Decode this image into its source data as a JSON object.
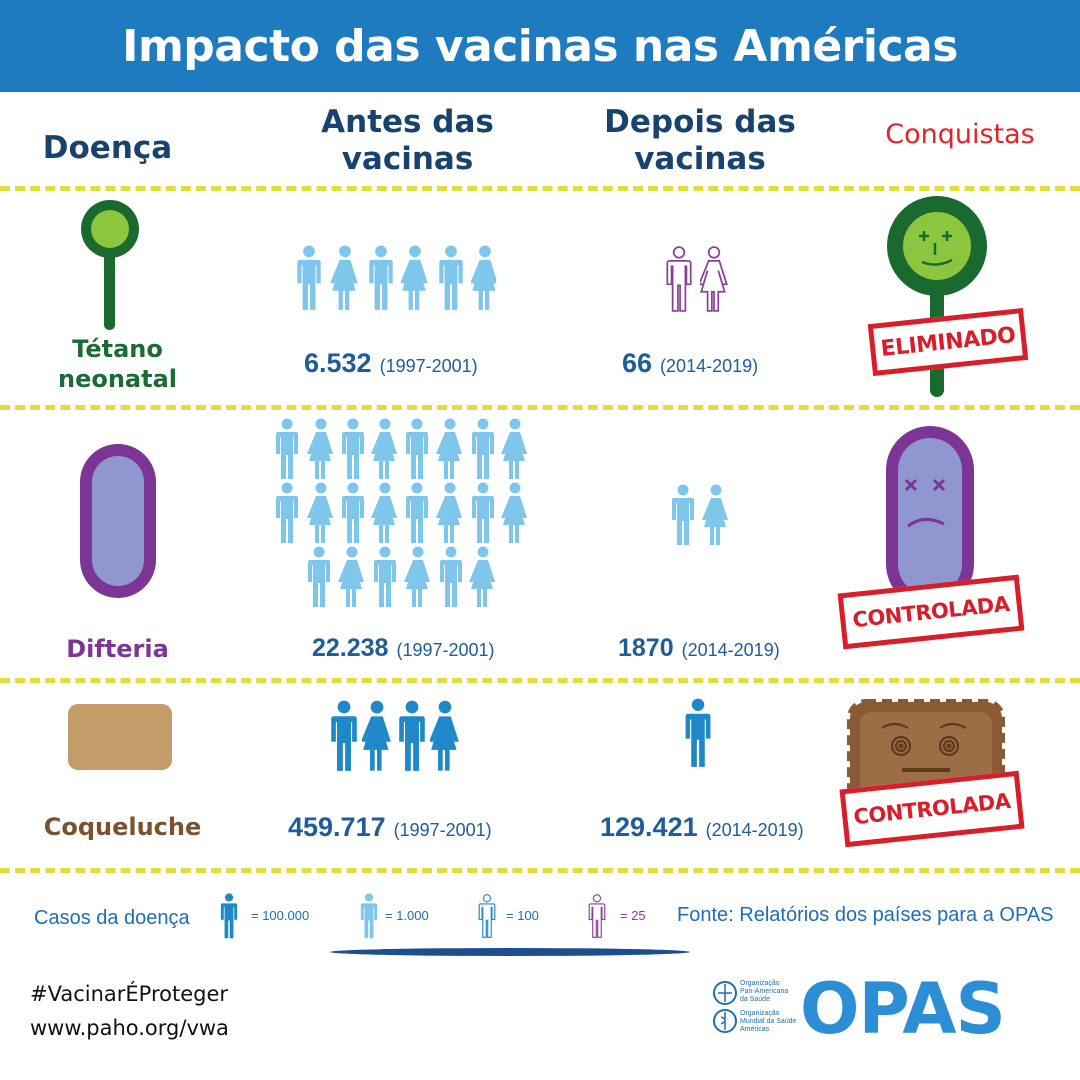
{
  "header": {
    "title": "Impacto das vacinas nas Américas"
  },
  "columns": {
    "disease": "Doença",
    "before": [
      "Antes das",
      "vacinas"
    ],
    "after": [
      "Depois das",
      "vacinas"
    ],
    "achievements": "Conquistas"
  },
  "rows": [
    {
      "name": [
        "Tétano",
        "neonatal"
      ],
      "name_color": "#1c6b36",
      "before_count": "6.532",
      "before_years": "(1997-2001)",
      "after_count": "66",
      "after_years": "(2014-2019)",
      "stamp": "ELIMINADO"
    },
    {
      "name": [
        "Difteria"
      ],
      "name_color": "#7b3595",
      "before_count": "22.238",
      "before_years": "(1997-2001)",
      "after_count": "1870",
      "after_years": "(2014-2019)",
      "stamp": "CONTROLADA"
    },
    {
      "name": [
        "Coqueluche"
      ],
      "name_color": "#7a5230",
      "before_count": "459.717",
      "before_years": "(1997-2001)",
      "after_count": "129.421",
      "after_years": "(2014-2019)",
      "stamp": "CONTROLADA"
    }
  ],
  "legend": {
    "label": "Casos da doença",
    "items": [
      {
        "icon": "person-dark-blue-icon",
        "value": "= 100.000"
      },
      {
        "icon": "person-light-blue-icon",
        "value": "= 1.000"
      },
      {
        "icon": "person-outline-blue-icon",
        "value": "= 100"
      },
      {
        "icon": "person-outline-purple-icon",
        "value": "= 25"
      }
    ],
    "source": "Fonte: Relatórios dos países para a OPAS"
  },
  "footer": {
    "hashtag": "#VacinarÉProteger",
    "url": "www.paho.org/vwa",
    "org_lines_1": [
      "Organização",
      "Pan-Americana",
      "da Saúde"
    ],
    "org_lines_2": [
      "Organização",
      "Mundial da Saúde",
      "Américas"
    ],
    "logo": "OPAS"
  },
  "colors": {
    "header_blue": "#1f7bbf",
    "dark_blue": "#1e88c8",
    "light_blue": "#7fc6ec",
    "purple": "#8b3d96",
    "stamp_red": "#d81e2a",
    "dash_yellow": "#e2dc3c"
  }
}
